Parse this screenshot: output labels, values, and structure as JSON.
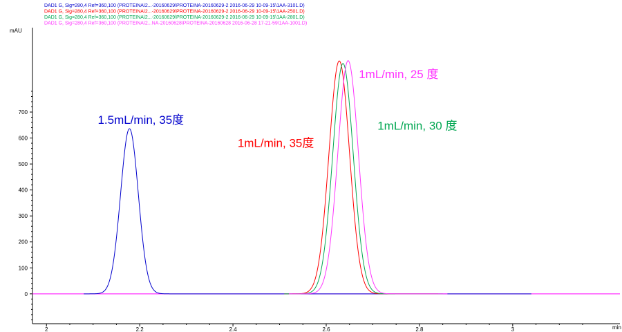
{
  "chart_data": {
    "type": "line",
    "title": "",
    "legend_placement": "top-left",
    "legend": [
      "DAD1 G, Sig=280,4 Ref=360,100 (PROTEINA\\2...-20160629\\PROTEINA-20160629-2 2016-06-29 10-09-15\\1AA-3101.D)",
      "DAD1 G, Sig=280,4 Ref=360,100 (PROTEINA\\2...-20160629\\PROTEINA-20160629-2 2016-06-29 10-09-15\\1AA-2501.D)",
      "DAD1 G, Sig=280,4 Ref=360,100 (PROTEINA\\2...-20160629\\PROTEINA-20160629-2 2016-06-29 10-09-15\\1AA-2801.D)",
      "DAD1 G, Sig=280,4 Ref=360,100 (PROTEINA\\2...NA-20160628\\PROTEINA-20160628 2016-06-28 17-21-59\\1AA-1001.D)"
    ],
    "y_unit": "mAU",
    "x_unit": "min",
    "xlim": [
      1.97,
      3.23
    ],
    "ylim": [
      -115,
      1025
    ],
    "x_ticks": [
      2,
      2.2,
      2.4,
      2.6,
      2.8,
      3
    ],
    "x_tick_labels": [
      "2",
      "2.2",
      "2.4",
      "2.6",
      "2.8",
      "3"
    ],
    "y_ticks": [
      0,
      100,
      200,
      300,
      400,
      500,
      600,
      700
    ],
    "y_tick_labels": [
      "0",
      "100",
      "200",
      "300",
      "400",
      "500",
      "600",
      "700"
    ],
    "grid": false,
    "baseline_color": "#ff00ff",
    "series": [
      {
        "color": "#0000cc",
        "peak_x": 2.178,
        "peak_y": 636,
        "sigma": 0.019,
        "x_range": [
          2.08,
          3.04
        ]
      },
      {
        "color": "#ff0000",
        "peak_x": 2.628,
        "peak_y": 897,
        "sigma": 0.022,
        "x_range": [
          2.51,
          2.84
        ]
      },
      {
        "color": "#00a651",
        "peak_x": 2.636,
        "peak_y": 887,
        "sigma": 0.022,
        "x_range": [
          2.51,
          2.85
        ]
      },
      {
        "color": "#ff33ff",
        "peak_x": 2.647,
        "peak_y": 898,
        "sigma": 0.022,
        "x_range": [
          2.52,
          2.86
        ]
      }
    ],
    "annotations": [
      {
        "text": "1.5mL/min, 35度",
        "color": "#0000cc",
        "x": 2.11,
        "y": 655
      },
      {
        "text": "1mL/min, 35度",
        "color": "#ff0000",
        "x": 2.41,
        "y": 565
      },
      {
        "text": "1mL/min, 25 度",
        "color": "#ff33ff",
        "x": 2.67,
        "y": 830
      },
      {
        "text": "1mL/min, 30 度",
        "color": "#00a651",
        "x": 2.71,
        "y": 632
      }
    ]
  }
}
